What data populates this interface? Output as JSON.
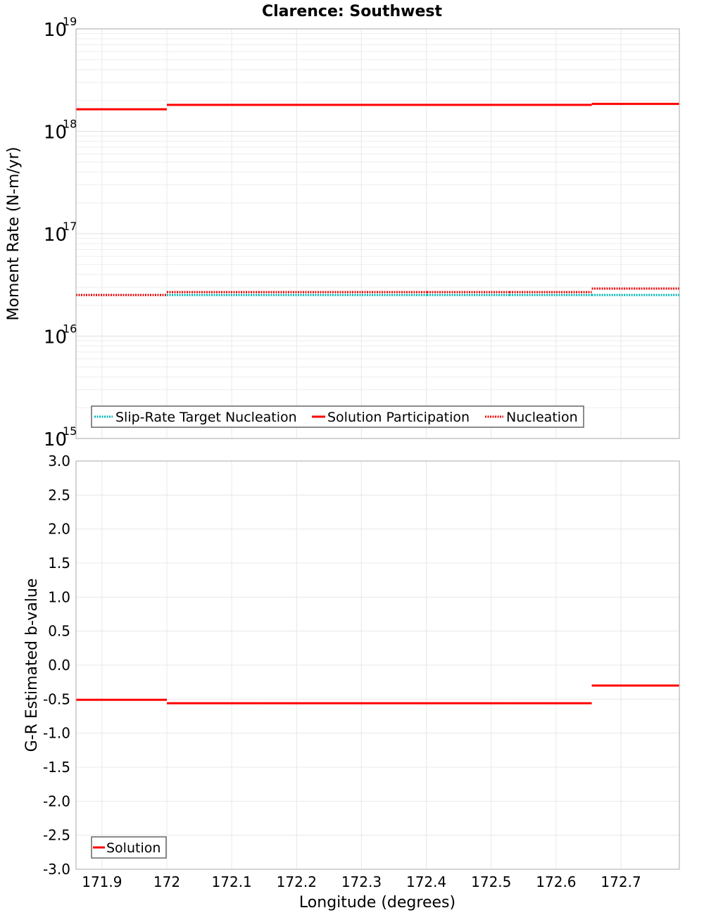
{
  "title": "Clarence: Southwest",
  "colors": {
    "solution": "#ff0000",
    "nucleation": "#ee0000",
    "slip_rate_target": "#00b4b4",
    "grid": "#e8e8e8",
    "frame": "#aaaaaa"
  },
  "top_panel": {
    "ylabel": "Moment Rate (N-m/yr)",
    "yticks": [
      {
        "base": "10",
        "exp": "19"
      },
      {
        "base": "10",
        "exp": "18"
      },
      {
        "base": "10",
        "exp": "17"
      },
      {
        "base": "10",
        "exp": "16"
      },
      {
        "base": "10",
        "exp": "15"
      }
    ],
    "legend": [
      {
        "label": "Slip-Rate Target Nucleation",
        "style": "dotted",
        "color": "#00b4b4"
      },
      {
        "label": "Solution Participation",
        "style": "solid",
        "color": "#ff0000"
      },
      {
        "label": "Nucleation",
        "style": "dotted",
        "color": "#ee0000"
      }
    ]
  },
  "bottom_panel": {
    "ylabel": "G-R Estimated b-value",
    "yticks": [
      "3.0",
      "2.5",
      "2.0",
      "1.5",
      "1.0",
      "0.5",
      "0.0",
      "-0.5",
      "-1.0",
      "-1.5",
      "-2.0",
      "-2.5",
      "-3.0"
    ],
    "legend": [
      {
        "label": "Solution",
        "style": "solid",
        "color": "#ff0000"
      }
    ]
  },
  "xaxis": {
    "label": "Longitude (degrees)",
    "ticks": [
      "171.9",
      "172",
      "172.1",
      "172.2",
      "172.3",
      "172.4",
      "172.5",
      "172.6",
      "172.7"
    ]
  },
  "chart_data": [
    {
      "type": "line",
      "title": "Clarence: Southwest",
      "xlabel": "Longitude (degrees)",
      "ylabel": "Moment Rate (N-m/yr)",
      "yscale": "log",
      "ylim": [
        1000000000000000.0,
        1e+19
      ],
      "xlim": [
        171.86,
        172.79
      ],
      "grid": true,
      "legend_position": "lower-left",
      "x_breaks": [
        171.86,
        172.0,
        172.141,
        172.274,
        172.401,
        172.528,
        172.655,
        172.79
      ],
      "series": [
        {
          "name": "Slip-Rate Target Nucleation",
          "style": "dotted-step",
          "color": "#00b4b4",
          "values": [
            2.52e+16,
            2.52e+16,
            2.52e+16,
            2.52e+16,
            2.52e+16,
            2.52e+16,
            2.52e+16
          ]
        },
        {
          "name": "Solution Participation",
          "style": "solid-step",
          "color": "#ff0000",
          "values": [
            1.64e+18,
            1.81e+18,
            1.81e+18,
            1.81e+18,
            1.81e+18,
            1.81e+18,
            1.85e+18
          ]
        },
        {
          "name": "Nucleation",
          "style": "dotted-step",
          "color": "#ee0000",
          "values": [
            2.52e+16,
            2.69e+16,
            2.69e+16,
            2.69e+16,
            2.69e+16,
            2.69e+16,
            2.91e+16
          ]
        }
      ]
    },
    {
      "type": "line",
      "title": "",
      "xlabel": "Longitude (degrees)",
      "ylabel": "G-R Estimated b-value",
      "ylim": [
        -3.0,
        3.0
      ],
      "xlim": [
        171.86,
        172.79
      ],
      "grid": true,
      "legend_position": "lower-left",
      "x_breaks": [
        171.86,
        172.0,
        172.141,
        172.274,
        172.401,
        172.528,
        172.655,
        172.79
      ],
      "series": [
        {
          "name": "Solution",
          "style": "solid-step",
          "color": "#ff0000",
          "values": [
            -0.51,
            -0.56,
            -0.56,
            -0.56,
            -0.56,
            -0.56,
            -0.3
          ]
        }
      ]
    }
  ]
}
